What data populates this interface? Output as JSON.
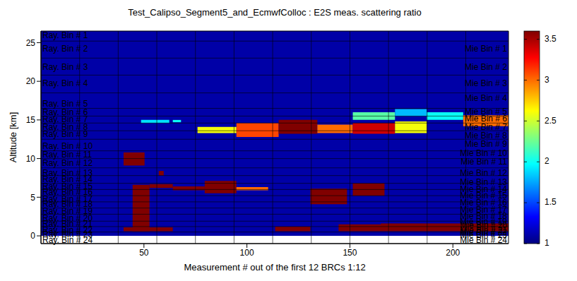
{
  "chart_data": {
    "type": "heatmap",
    "title": "Test_Calipso_Segment5_and_EcmwfColloc : E2S meas. scattering ratio",
    "x_label": "Measurement # out of the first 12 BRCs 1:12",
    "y_label": "Altitude [km]",
    "xlim": [
      0,
      227
    ],
    "xticks": [
      50,
      100,
      150,
      200
    ],
    "ylim": [
      -1,
      26.5
    ],
    "yticks": [
      0,
      5,
      10,
      15,
      20,
      25
    ],
    "cells": [
      {
        "x": [
          0,
          227
        ],
        "y": [
          0,
          26.5
        ],
        "value": 1.1
      },
      {
        "x": [
          40.1,
          50.3
        ],
        "y": [
          9.1,
          10.8
        ],
        "value": 3.6
      },
      {
        "x": [
          44.5,
          52.7
        ],
        "y": [
          0.6,
          6.6
        ],
        "value": 3.6
      },
      {
        "x": [
          40.1,
          64
        ],
        "y": [
          0.6,
          1.1
        ],
        "value": 3.6
      },
      {
        "x": [
          52.7,
          64
        ],
        "y": [
          6.2,
          6.7
        ],
        "value": 3.6
      },
      {
        "x": [
          64,
          79.5
        ],
        "y": [
          5.9,
          6.4
        ],
        "value": 3.6
      },
      {
        "x": [
          79.5,
          94.9
        ],
        "y": [
          5.5,
          7.1
        ],
        "value": 3.6
      },
      {
        "x": [
          94.9,
          110.3
        ],
        "y": [
          5.9,
          6.3
        ],
        "value": 3.0
      },
      {
        "x": [
          57.2,
          59.6
        ],
        "y": [
          7.8,
          8.4
        ],
        "value": 3.6
      },
      {
        "x": [
          48.6,
          62.3
        ],
        "y": [
          14.6,
          15.0
        ],
        "value": 1.9
      },
      {
        "x": [
          64,
          68
        ],
        "y": [
          14.7,
          15.0
        ],
        "value": 2.0
      },
      {
        "x": [
          76,
          94.9
        ],
        "y": [
          13.3,
          14.1
        ],
        "value": 2.6
      },
      {
        "x": [
          94.9,
          115.4
        ],
        "y": [
          12.8,
          14.6
        ],
        "value": 3.1
      },
      {
        "x": [
          115.4,
          134.2
        ],
        "y": [
          13.2,
          15.0
        ],
        "value": 3.6
      },
      {
        "x": [
          134.2,
          151.4
        ],
        "y": [
          13.3,
          14.4
        ],
        "value": 3.0
      },
      {
        "x": [
          151.4,
          171.9
        ],
        "y": [
          15.0,
          16.0
        ],
        "value": 2.2
      },
      {
        "x": [
          151.4,
          171.9
        ],
        "y": [
          13.2,
          14.6
        ],
        "value": 3.4
      },
      {
        "x": [
          171.9,
          187.3
        ],
        "y": [
          15.5,
          16.4
        ],
        "value": 1.8
      },
      {
        "x": [
          171.9,
          187.3
        ],
        "y": [
          13.3,
          14.8
        ],
        "value": 2.6
      },
      {
        "x": [
          187.3,
          205
        ],
        "y": [
          15.0,
          16.0
        ],
        "value": 2.0
      },
      {
        "x": [
          205,
          227
        ],
        "y": [
          14.2,
          15.6
        ],
        "value": 3.0
      },
      {
        "x": [
          130.8,
          148.6
        ],
        "y": [
          4.1,
          6.1
        ],
        "value": 3.6
      },
      {
        "x": [
          151.4,
          166.8
        ],
        "y": [
          5.2,
          6.8
        ],
        "value": 3.6
      },
      {
        "x": [
          113.7,
          130.8
        ],
        "y": [
          0.6,
          1.2
        ],
        "value": 3.6
      },
      {
        "x": [
          144.5,
          227
        ],
        "y": [
          0.6,
          1.5
        ],
        "value": 3.6
      },
      {
        "x": [
          165,
          227
        ],
        "y": [
          1.0,
          1.6
        ],
        "value": 3.6
      }
    ],
    "colorbar": {
      "range": [
        1,
        3.6
      ],
      "ticks": [
        1,
        1.5,
        2,
        2.5,
        3,
        3.5
      ]
    },
    "range_bin_edges": [
      25.2,
      23,
      20.8,
      18.5,
      16.5,
      15.5,
      14.6,
      13.6,
      12.5,
      11,
      10,
      8.8,
      7.8,
      6.8,
      6,
      5.2,
      4.4,
      3.6,
      2.8,
      1.9,
      1.2,
      0.5
    ],
    "brc_edges": [
      18.75,
      37.5,
      56.25,
      75,
      93.75,
      112.5,
      131.25,
      150,
      168.75,
      187.5,
      206.25
    ],
    "annotations": {
      "left": [
        {
          "label": "Ray. Bin # 1",
          "y": 26.0
        },
        {
          "label": "Ray. Bin # 2",
          "y": 24.2
        },
        {
          "label": "Ray. Bin # 3",
          "y": 21.9
        },
        {
          "label": "Ray. Bin # 4",
          "y": 19.8
        },
        {
          "label": "Ray. Bin # 5",
          "y": 17.1
        },
        {
          "label": "Ray. Bin # 6",
          "y": 16.0
        },
        {
          "label": "Ray. Bin # 7",
          "y": 15.1
        },
        {
          "label": "Ray. Bin # 8",
          "y": 14.1
        },
        {
          "label": "Ray. Bin # 9",
          "y": 13.2
        },
        {
          "label": "Ray. Bin # 10",
          "y": 11.6
        },
        {
          "label": "Ray. Bin # 11",
          "y": 10.5
        },
        {
          "label": "Ray. Bin # 12",
          "y": 9.4
        },
        {
          "label": "Ray. Bin # 13",
          "y": 8.2
        },
        {
          "label": "Ray. Bin # 14",
          "y": 7.3
        },
        {
          "label": "Ray. Bin # 15",
          "y": 6.4
        },
        {
          "label": "Ray. Bin # 16",
          "y": 5.7
        },
        {
          "label": "Ray. Bin # 17",
          "y": 4.8
        },
        {
          "label": "Ray. Bin # 18",
          "y": 4.1
        },
        {
          "label": "Ray. Bin # 19",
          "y": 3.2
        },
        {
          "label": "Ray. Bin # 20",
          "y": 2.3
        },
        {
          "label": "Ray. Bin # 21",
          "y": 1.6
        },
        {
          "label": "Ray. Bin # 22",
          "y": 0.8
        },
        {
          "label": "Ray. Bin # 23",
          "y": 0.2
        },
        {
          "label": "Ray. Bin # 24",
          "y": -0.5
        }
      ],
      "right": [
        {
          "label": "Mie Bin # 1",
          "y": 24.2
        },
        {
          "label": "Mie Bin # 2",
          "y": 21.9
        },
        {
          "label": "Mie Bin # 3",
          "y": 19.8
        },
        {
          "label": "Mie Bin # 4",
          "y": 17.8
        },
        {
          "label": "Mie Bin # 5",
          "y": 16.1
        },
        {
          "label": "Mie Bin # 6",
          "y": 15.2
        },
        {
          "label": "Mie Bin # 7",
          "y": 14.1
        },
        {
          "label": "Mie Bin # 8",
          "y": 13.0
        },
        {
          "label": "Mie Bin # 9",
          "y": 11.9
        },
        {
          "label": "Mie Bin # 10",
          "y": 10.7
        },
        {
          "label": "Mie Bin # 11",
          "y": 9.6
        },
        {
          "label": "Mie Bin # 12",
          "y": 8.2
        },
        {
          "label": "Mie Bin # 13",
          "y": 7.0
        },
        {
          "label": "Mie Bin # 14",
          "y": 6.1
        },
        {
          "label": "Mie Bin # 15",
          "y": 5.2
        },
        {
          "label": "Mie Bin # 16",
          "y": 4.3
        },
        {
          "label": "Mie Bin # 17",
          "y": 3.4
        },
        {
          "label": "Mie Bin # 18",
          "y": 2.6
        },
        {
          "label": "Mie Bin # 19",
          "y": 1.9
        },
        {
          "label": "Mie Bin # 20",
          "y": 1.4
        },
        {
          "label": "Mie Bin # 21",
          "y": 0.8
        },
        {
          "label": "Mie Bin # 22",
          "y": 0.5
        },
        {
          "label": "Mie Bin # 23",
          "y": 0.1
        },
        {
          "label": "Mie Bin # 24",
          "y": -0.5
        }
      ]
    }
  }
}
